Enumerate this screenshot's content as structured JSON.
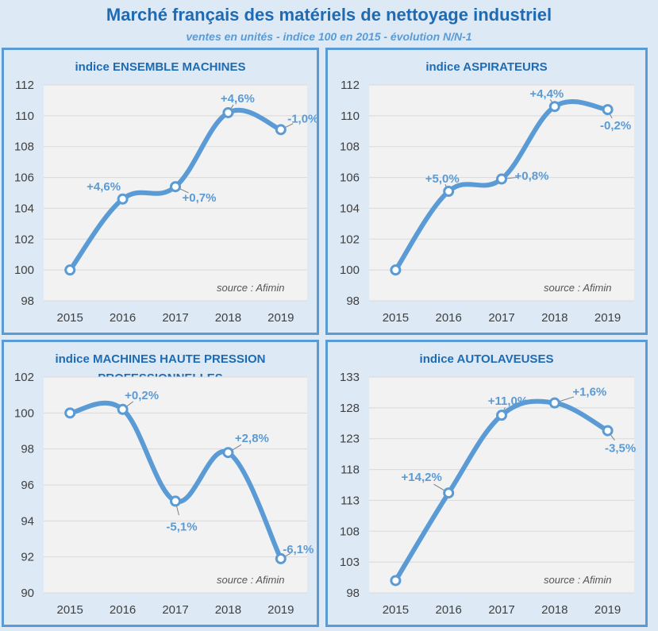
{
  "header": {
    "title": "Marché français des matériels de nettoyage industriel",
    "subtitle": "ventes en unités - indice 100 en 2015 - évolution N/N-1"
  },
  "colors": {
    "line": "#5b9bd5",
    "title": "#1f6bb3",
    "label": "#5b9bd5",
    "plot_bg": "#f2f2f2",
    "grid": "#d9d9d9"
  },
  "chart_data": [
    {
      "type": "line",
      "title": "indice ENSEMBLE MACHINES",
      "source": "source : Afimin",
      "x": [
        "2015",
        "2016",
        "2017",
        "2018",
        "2019"
      ],
      "values": [
        100,
        104.6,
        105.4,
        110.2,
        109.1
      ],
      "data_labels": [
        "",
        "+4,6%",
        "+0,7%",
        "+4,6%",
        "-1,0%"
      ],
      "yticks": [
        "98",
        "100",
        "102",
        "104",
        "106",
        "108",
        "110",
        "112"
      ],
      "ylim": [
        98,
        112
      ],
      "grid": true
    },
    {
      "type": "line",
      "title": "indice ASPIRATEURS",
      "source": "source : Afimin",
      "x": [
        "2015",
        "2016",
        "2017",
        "2018",
        "2019"
      ],
      "values": [
        100,
        105.1,
        105.9,
        110.6,
        110.4
      ],
      "data_labels": [
        "",
        "+5,0%",
        "+0,8%",
        "+4,4%",
        "-0,2%"
      ],
      "yticks": [
        "98",
        "100",
        "102",
        "104",
        "106",
        "108",
        "110",
        "112"
      ],
      "ylim": [
        98,
        112
      ],
      "grid": true
    },
    {
      "type": "line",
      "title": "indice  MACHINES HAUTE PRESSION PROFESSIONNELLES",
      "source": "source : Afimin",
      "x": [
        "2015",
        "2016",
        "2017",
        "2018",
        "2019"
      ],
      "values": [
        100,
        100.2,
        95.1,
        97.8,
        91.9
      ],
      "data_labels": [
        "",
        "+0,2%",
        "-5,1%",
        "+2,8%",
        "-6,1%"
      ],
      "yticks": [
        "90",
        "92",
        "94",
        "96",
        "98",
        "100",
        "102"
      ],
      "ylim": [
        90,
        102
      ],
      "grid": true
    },
    {
      "type": "line",
      "title": "indice  AUTOLAVEUSES",
      "source": "source : Afimin",
      "x": [
        "2015",
        "2016",
        "2017",
        "2018",
        "2019"
      ],
      "values": [
        100,
        114.2,
        126.8,
        128.8,
        124.3
      ],
      "data_labels": [
        "",
        "+14,2%",
        "+11,0%",
        "+1,6%",
        "-3,5%"
      ],
      "yticks": [
        "98",
        "103",
        "108",
        "113",
        "118",
        "123",
        "128",
        "133"
      ],
      "ylim": [
        98,
        133
      ],
      "grid": true
    }
  ]
}
